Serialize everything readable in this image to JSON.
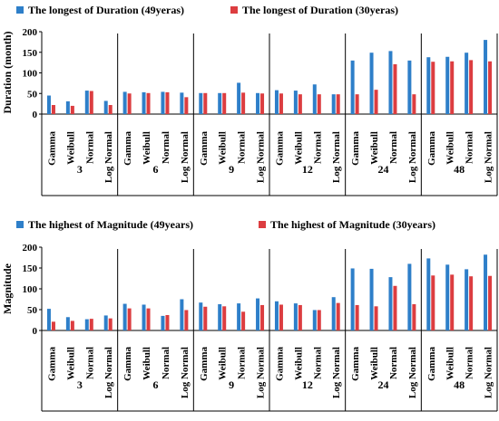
{
  "chart_data": [
    {
      "type": "bar",
      "ylabel": "Duration (month)",
      "ylim": [
        0,
        200
      ],
      "yticks": [
        0,
        50,
        100,
        150,
        200
      ],
      "groups": [
        "3",
        "6",
        "9",
        "12",
        "24",
        "48"
      ],
      "distributions": [
        "Gamma",
        "Weibull",
        "Normal",
        "Log Normal"
      ],
      "series": [
        {
          "name": "The longest of Duration (49yeras)",
          "color": "#2e7fc9",
          "values": [
            45,
            31,
            57,
            32,
            54,
            53,
            54,
            52,
            51,
            51,
            76,
            51,
            58,
            57,
            72,
            48,
            130,
            149,
            153,
            130,
            138,
            139,
            149,
            180
          ]
        },
        {
          "name": "The longest of Duration (30yeras)",
          "color": "#dc3d40",
          "values": [
            22,
            20,
            56,
            22,
            50,
            51,
            53,
            41,
            51,
            51,
            52,
            50,
            50,
            48,
            48,
            48,
            48,
            59,
            121,
            48,
            127,
            128,
            131,
            128
          ]
        }
      ]
    },
    {
      "type": "bar",
      "ylabel": "Magnitude",
      "ylim": [
        0,
        200
      ],
      "yticks": [
        0,
        50,
        100,
        150,
        200
      ],
      "groups": [
        "3",
        "6",
        "9",
        "12",
        "24",
        "48"
      ],
      "distributions": [
        "Gamma",
        "Weibull",
        "Normal",
        "Log Normal"
      ],
      "series": [
        {
          "name": "The highest of Magnitude (49years)",
          "color": "#2e7fc9",
          "values": [
            52,
            32,
            27,
            36,
            64,
            62,
            35,
            75,
            67,
            63,
            65,
            77,
            70,
            65,
            49,
            80,
            149,
            148,
            128,
            160,
            173,
            158,
            147,
            182
          ]
        },
        {
          "name": "The highest of Magnitude (30years)",
          "color": "#dc3d40",
          "values": [
            21,
            23,
            28,
            29,
            53,
            53,
            37,
            49,
            57,
            58,
            45,
            61,
            62,
            61,
            49,
            66,
            61,
            58,
            107,
            63,
            132,
            134,
            130,
            131
          ]
        }
      ]
    }
  ]
}
